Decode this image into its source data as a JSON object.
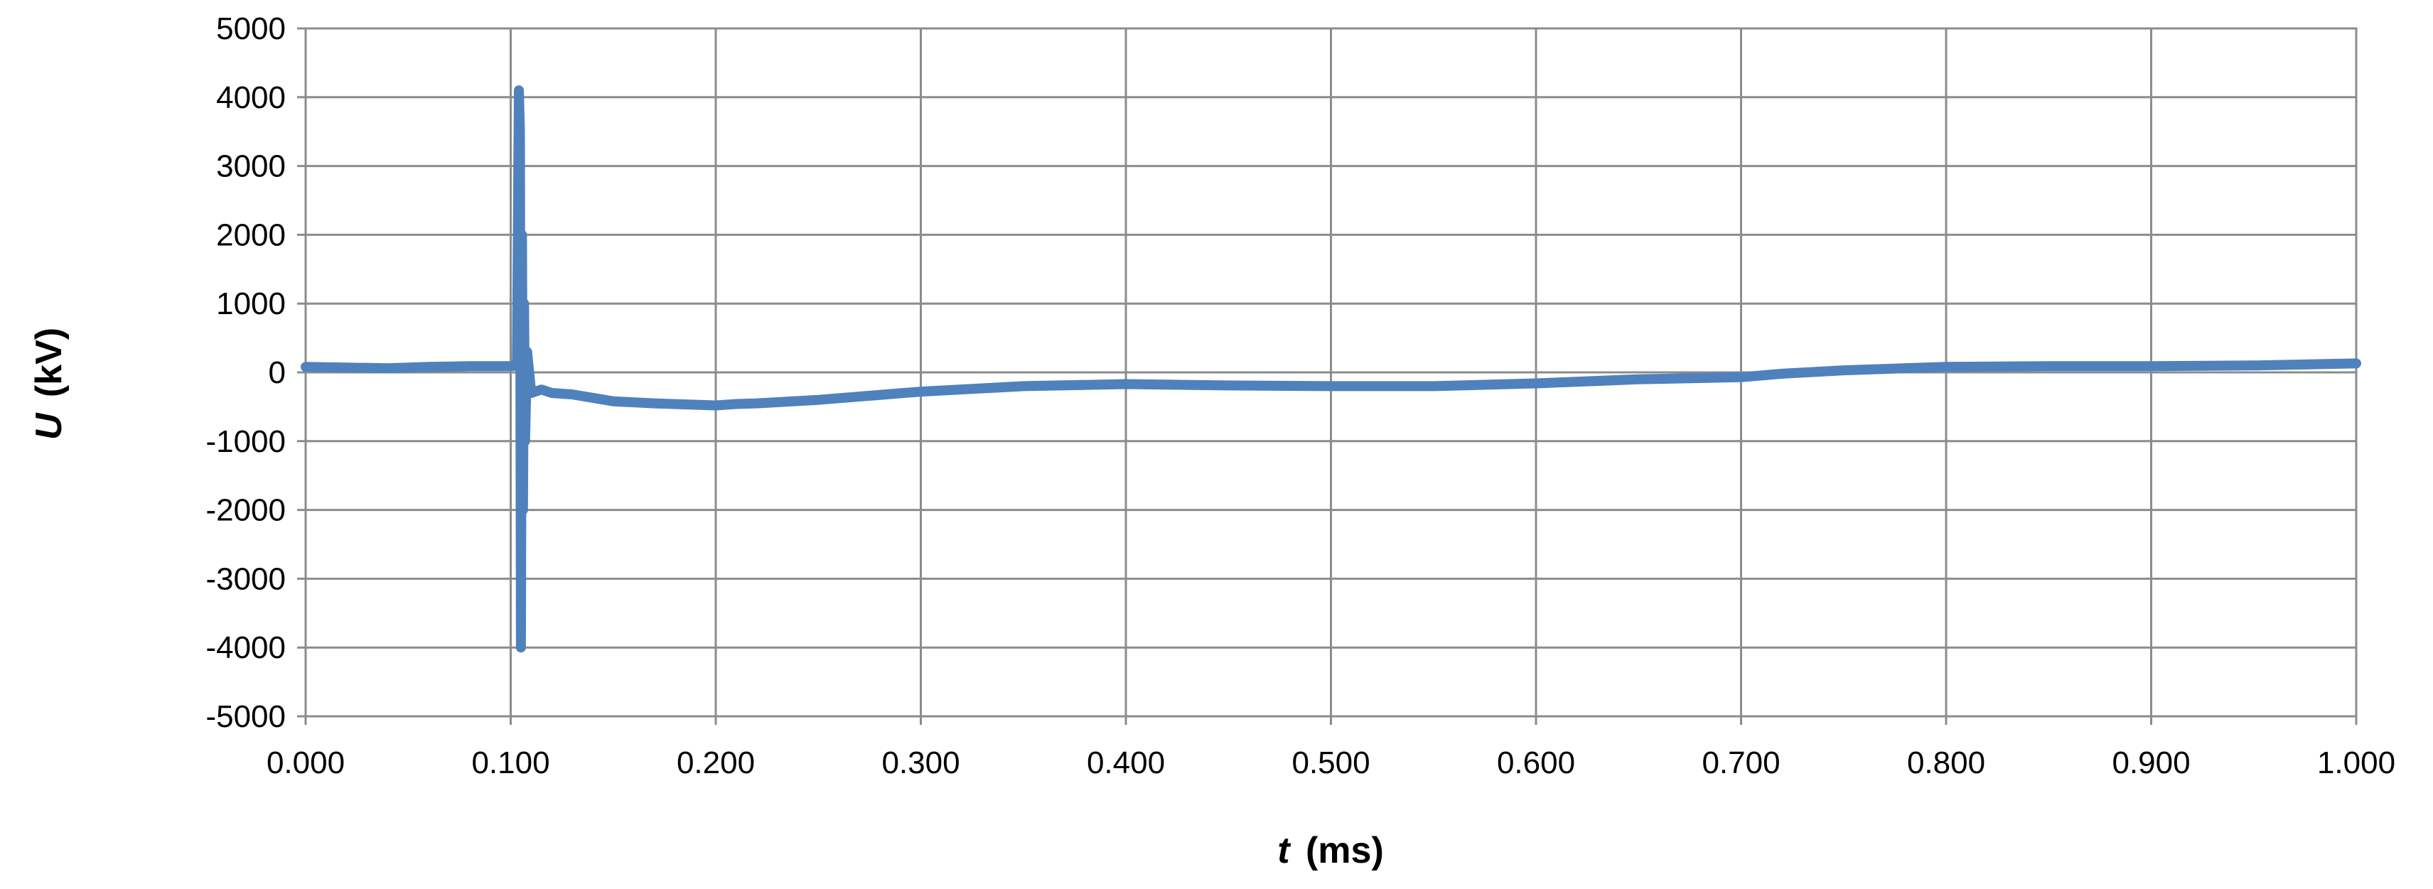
{
  "chart_data": {
    "type": "line",
    "title": "",
    "xlabel_var": "t",
    "xlabel_unit": "(ms)",
    "ylabel_var": "U",
    "ylabel_unit": "(kV)",
    "xlim": [
      0,
      1
    ],
    "ylim": [
      -5000,
      5000
    ],
    "x_ticks": [
      "0.000",
      "0.100",
      "0.200",
      "0.300",
      "0.400",
      "0.500",
      "0.600",
      "0.700",
      "0.800",
      "0.900",
      "1.000"
    ],
    "y_ticks": [
      "5000",
      "4000",
      "3000",
      "2000",
      "1000",
      "0",
      "-1000",
      "-2000",
      "-3000",
      "-4000",
      "-5000"
    ],
    "grid": true,
    "legend": "none",
    "series_color": "#4f81bd",
    "series": [
      {
        "x": [
          0.0,
          0.02,
          0.04,
          0.06,
          0.08,
          0.1,
          0.103,
          0.104,
          0.1045,
          0.105,
          0.1055,
          0.106,
          0.1065,
          0.107,
          0.108,
          0.11,
          0.115,
          0.12,
          0.13,
          0.15,
          0.17,
          0.2,
          0.21,
          0.22,
          0.25,
          0.3,
          0.35,
          0.4,
          0.45,
          0.5,
          0.55,
          0.6,
          0.65,
          0.7,
          0.72,
          0.75,
          0.8,
          0.85,
          0.9,
          0.95,
          1.0
        ],
        "y": [
          80,
          70,
          60,
          80,
          90,
          90,
          100,
          4100,
          3500,
          -4000,
          2000,
          -2000,
          1000,
          -1000,
          300,
          -300,
          -250,
          -300,
          -320,
          -420,
          -450,
          -480,
          -460,
          -450,
          -400,
          -280,
          -200,
          -170,
          -190,
          -200,
          -200,
          -160,
          -100,
          -70,
          -20,
          30,
          80,
          90,
          90,
          100,
          130
        ]
      }
    ]
  }
}
